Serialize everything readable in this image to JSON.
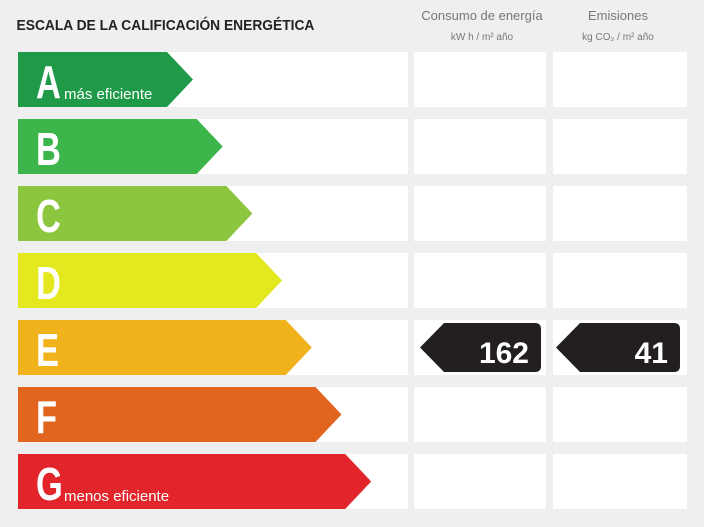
{
  "header": {
    "title": "ESCALA DE LA CALIFICACIÓN ENERGÉTICA"
  },
  "columns": [
    {
      "title": "Consumo de energía",
      "unit": "kW h / m² año"
    },
    {
      "title": "Emisiones",
      "unit": "kg CO₂ / m² año"
    }
  ],
  "rows": [
    {
      "letter": "A",
      "label": "más eficiente",
      "color": "#1e9a48"
    },
    {
      "letter": "B",
      "color": "#3cb54a"
    },
    {
      "letter": "C",
      "color": "#8cc63f"
    },
    {
      "letter": "D",
      "color": "#e3e81f"
    },
    {
      "letter": "E",
      "color": "#f0b31c",
      "energy": 162,
      "emissions": 41
    },
    {
      "letter": "F",
      "color": "#e2651f"
    },
    {
      "letter": "G",
      "label": "menos eficiente",
      "color": "#e2252a"
    }
  ]
}
